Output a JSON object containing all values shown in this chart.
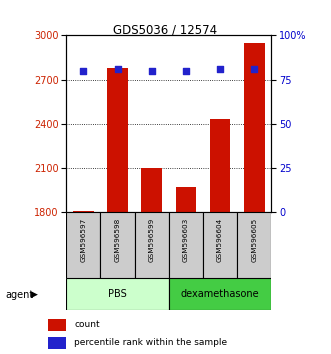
{
  "title": "GDS5036 / 12574",
  "samples": [
    "GSM596597",
    "GSM596598",
    "GSM596599",
    "GSM596603",
    "GSM596604",
    "GSM596605"
  ],
  "counts": [
    1810,
    2780,
    2100,
    1975,
    2430,
    2950
  ],
  "percentile_ranks": [
    80,
    81,
    80,
    80,
    81,
    81
  ],
  "bar_color": "#cc1100",
  "dot_color": "#2222cc",
  "ylim_left": [
    1800,
    3000
  ],
  "yticks_left": [
    1800,
    2100,
    2400,
    2700,
    3000
  ],
  "ylim_right": [
    0,
    100
  ],
  "yticks_right": [
    0,
    25,
    50,
    75,
    100
  ],
  "yticklabels_right": [
    "0",
    "25",
    "50",
    "75",
    "100%"
  ],
  "pbs_color": "#ccffcc",
  "dexa_color": "#44cc44",
  "sample_box_color": "#cccccc",
  "agent_label": "agent",
  "legend_count_label": "count",
  "legend_percentile_label": "percentile rank within the sample",
  "background_color": "#ffffff",
  "tick_label_color_left": "#cc2200",
  "tick_label_color_right": "#0000cc",
  "bar_width": 0.6
}
